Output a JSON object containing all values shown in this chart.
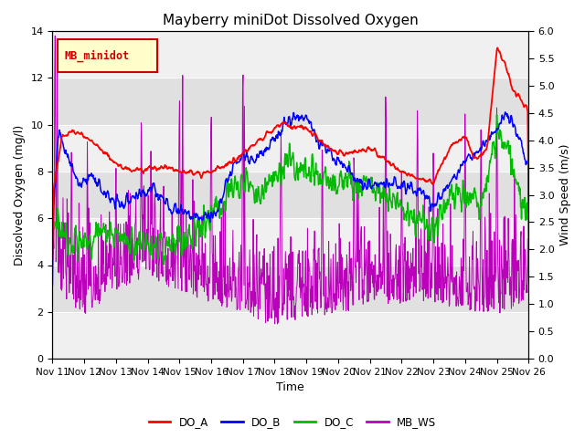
{
  "title": "Mayberry miniDot Dissolved Oxygen",
  "xlabel": "Time",
  "ylabel_left": "Dissolved Oxygen (mg/l)",
  "ylabel_right": "Wind Speed (m/s)",
  "ylim_left": [
    0,
    14
  ],
  "ylim_right": [
    0.0,
    6.0
  ],
  "yticks_left": [
    0,
    2,
    4,
    6,
    8,
    10,
    12,
    14
  ],
  "yticks_right": [
    0.0,
    0.5,
    1.0,
    1.5,
    2.0,
    2.5,
    3.0,
    3.5,
    4.0,
    4.5,
    5.0,
    5.5,
    6.0
  ],
  "xtick_labels": [
    "Nov 11",
    "Nov 12",
    "Nov 13",
    "Nov 14",
    "Nov 15",
    "Nov 16",
    "Nov 17",
    "Nov 18",
    "Nov 19",
    "Nov 20",
    "Nov 21",
    "Nov 22",
    "Nov 23",
    "Nov 24",
    "Nov 25",
    "Nov 26"
  ],
  "xlim": [
    0,
    15
  ],
  "colors": {
    "DO_A": "#ff0000",
    "DO_B": "#0000ff",
    "DO_C": "#00bb00",
    "MB_WS": "#bb00bb"
  },
  "legend_label": "MB_minidot",
  "legend_box_facecolor": "#ffffcc",
  "legend_box_edgecolor": "#cc0000",
  "background_shade_ranges": [
    [
      2,
      4
    ],
    [
      6,
      8
    ],
    [
      10,
      12
    ]
  ],
  "shade_color": "#e0e0e0",
  "bg_color": "#f0f0f0",
  "title_fontsize": 11,
  "axis_fontsize": 9,
  "tick_fontsize": 8
}
